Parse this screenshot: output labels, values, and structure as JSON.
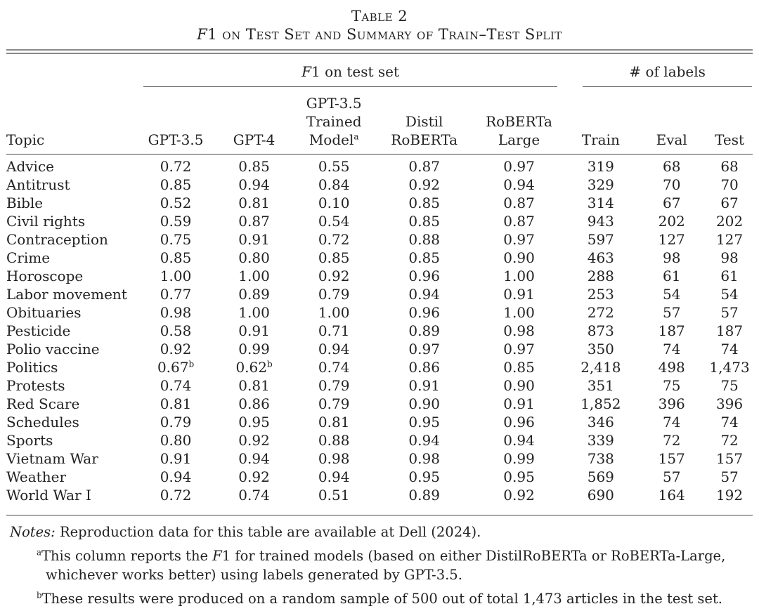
{
  "colors": {
    "background": "#ffffff",
    "text": "#222222",
    "rule": "#4a4a4a",
    "double_rule": "#8a8a8a"
  },
  "title": {
    "table_label": "Table 2",
    "subtitle_prefix": "F",
    "subtitle_suffix": "1 on Test Set and Summary of Train–Test Split"
  },
  "table": {
    "groups": {
      "f1_prefix": "F",
      "f1_suffix": "1 on test set",
      "labels": "# of labels"
    },
    "columns": {
      "topic": "Topic",
      "gpt35": "GPT-3.5",
      "gpt4": "GPT-4",
      "trained_line1": "GPT-3.5",
      "trained_line2": "Trained",
      "trained_line3": "Model",
      "trained_sup": "a",
      "distil_line1": "Distil",
      "distil_line2": "RoBERTa",
      "roberta_line1": "RoBERTa",
      "roberta_line2": "Large",
      "train": "Train",
      "eval": "Eval",
      "test": "Test"
    },
    "rows": [
      [
        "Advice",
        "0.72",
        "0.85",
        "0.55",
        "0.87",
        "0.97",
        "319",
        "68",
        "68"
      ],
      [
        "Antitrust",
        "0.85",
        "0.94",
        "0.84",
        "0.92",
        "0.94",
        "329",
        "70",
        "70"
      ],
      [
        "Bible",
        "0.52",
        "0.81",
        "0.10",
        "0.85",
        "0.87",
        "314",
        "67",
        "67"
      ],
      [
        "Civil rights",
        "0.59",
        "0.87",
        "0.54",
        "0.85",
        "0.87",
        "943",
        "202",
        "202"
      ],
      [
        "Contraception",
        "0.75",
        "0.91",
        "0.72",
        "0.88",
        "0.97",
        "597",
        "127",
        "127"
      ],
      [
        "Crime",
        "0.85",
        "0.80",
        "0.85",
        "0.85",
        "0.90",
        "463",
        "98",
        "98"
      ],
      [
        "Horoscope",
        "1.00",
        "1.00",
        "0.92",
        "0.96",
        "1.00",
        "288",
        "61",
        "61"
      ],
      [
        "Labor movement",
        "0.77",
        "0.89",
        "0.79",
        "0.94",
        "0.91",
        "253",
        "54",
        "54"
      ],
      [
        "Obituaries",
        "0.98",
        "1.00",
        "1.00",
        "0.96",
        "1.00",
        "272",
        "57",
        "57"
      ],
      [
        "Pesticide",
        "0.58",
        "0.91",
        "0.71",
        "0.89",
        "0.98",
        "873",
        "187",
        "187"
      ],
      [
        "Polio vaccine",
        "0.92",
        "0.99",
        "0.94",
        "0.97",
        "0.97",
        "350",
        "74",
        "74"
      ],
      [
        "Politics",
        {
          "v": "0.67",
          "sup": "b"
        },
        {
          "v": "0.62",
          "sup": "b"
        },
        "0.74",
        "0.86",
        "0.85",
        "2,418",
        "498",
        "1,473"
      ],
      [
        "Protests",
        "0.74",
        "0.81",
        "0.79",
        "0.91",
        "0.90",
        "351",
        "75",
        "75"
      ],
      [
        "Red Scare",
        "0.81",
        "0.86",
        "0.79",
        "0.90",
        "0.91",
        "1,852",
        "396",
        "396"
      ],
      [
        "Schedules",
        "0.79",
        "0.95",
        "0.81",
        "0.95",
        "0.96",
        "346",
        "74",
        "74"
      ],
      [
        "Sports",
        "0.80",
        "0.92",
        "0.88",
        "0.94",
        "0.94",
        "339",
        "72",
        "72"
      ],
      [
        "Vietnam War",
        "0.91",
        "0.94",
        "0.98",
        "0.98",
        "0.99",
        "738",
        "157",
        "157"
      ],
      [
        "Weather",
        "0.94",
        "0.92",
        "0.94",
        "0.95",
        "0.95",
        "569",
        "57",
        "57"
      ],
      [
        "World War I",
        "0.72",
        "0.74",
        "0.51",
        "0.89",
        "0.92",
        "690",
        "164",
        "192"
      ]
    ]
  },
  "notes": {
    "notes_label": "Notes:",
    "notes_text": " Reproduction data for this table are available at Dell (2024).",
    "footnote_a_sup": "a",
    "footnote_a_pre": "This column reports the ",
    "footnote_a_f": "F",
    "footnote_a_post": "1 for trained models (based on either DistilRoBERTa or RoBERTa-Large, whichever works better) using labels generated by GPT-3.5.",
    "footnote_b_sup": "b",
    "footnote_b_text": "These results were produced on a random sample of 500 out of total 1,473 articles in the test set."
  }
}
